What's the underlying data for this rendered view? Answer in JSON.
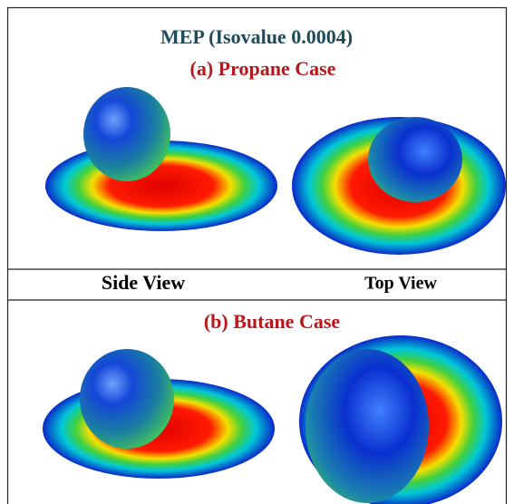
{
  "title": "MEP (Isovalue 0.0004)",
  "panels": [
    {
      "label": "(a) Propane Case"
    },
    {
      "label": "(b) Butane Case"
    }
  ],
  "views": [
    "Side View",
    "Top View"
  ]
}
